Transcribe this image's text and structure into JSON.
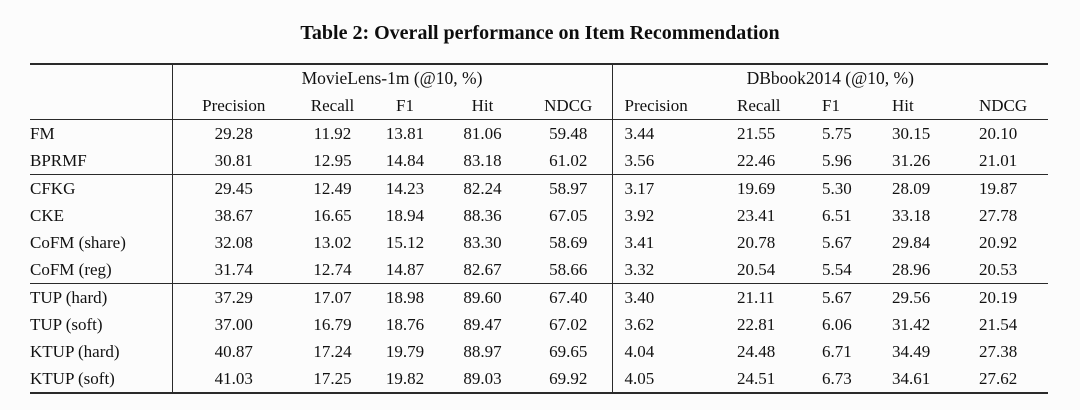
{
  "title": "Table 2: Overall performance on Item Recommendation",
  "table": {
    "groups": [
      {
        "label": "MovieLens-1m (@10, %)"
      },
      {
        "label": "DBbook2014 (@10, %)"
      }
    ],
    "metrics": [
      "Precision",
      "Recall",
      "F1",
      "Hit",
      "NDCG"
    ],
    "row_groups": [
      {
        "rows": [
          {
            "label": "FM",
            "ml": [
              "29.28",
              "11.92",
              "13.81",
              "81.06",
              "59.48"
            ],
            "db": [
              "3.44",
              "21.55",
              "5.75",
              "30.15",
              "20.10"
            ],
            "ml_bold": [],
            "db_bold": []
          },
          {
            "label": "BPRMF",
            "ml": [
              "30.81",
              "12.95",
              "14.84",
              "83.18",
              "61.02"
            ],
            "db": [
              "3.56",
              "22.46",
              "5.96",
              "31.26",
              "21.01"
            ],
            "ml_bold": [],
            "db_bold": []
          }
        ]
      },
      {
        "rows": [
          {
            "label": "CFKG",
            "ml": [
              "29.45",
              "12.49",
              "14.23",
              "82.24",
              "58.97"
            ],
            "db": [
              "3.17",
              "19.69",
              "5.30",
              "28.09",
              "19.87"
            ],
            "ml_bold": [],
            "db_bold": []
          },
          {
            "label": "CKE",
            "ml": [
              "38.67",
              "16.65",
              "18.94",
              "88.36",
              "67.05"
            ],
            "db": [
              "3.92",
              "23.41",
              "6.51",
              "33.18",
              "27.78"
            ],
            "ml_bold": [],
            "db_bold": [
              4
            ]
          },
          {
            "label": "CoFM (share)",
            "ml": [
              "32.08",
              "13.02",
              "15.12",
              "83.30",
              "58.69"
            ],
            "db": [
              "3.41",
              "20.78",
              "5.67",
              "29.84",
              "20.92"
            ],
            "ml_bold": [],
            "db_bold": []
          },
          {
            "label": "CoFM (reg)",
            "ml": [
              "31.74",
              "12.74",
              "14.87",
              "82.67",
              "58.66"
            ],
            "db": [
              "3.32",
              "20.54",
              "5.54",
              "28.96",
              "20.53"
            ],
            "ml_bold": [],
            "db_bold": []
          }
        ]
      },
      {
        "rows": [
          {
            "label": "TUP (hard)",
            "ml": [
              "37.29",
              "17.07",
              "18.98",
              "89.60",
              "67.40"
            ],
            "db": [
              "3.40",
              "21.11",
              "5.67",
              "29.56",
              "20.19"
            ],
            "ml_bold": [
              3
            ],
            "db_bold": []
          },
          {
            "label": "TUP (soft)",
            "ml": [
              "37.00",
              "16.79",
              "18.76",
              "89.47",
              "67.02"
            ],
            "db": [
              "3.62",
              "22.81",
              "6.06",
              "31.42",
              "21.54"
            ],
            "ml_bold": [],
            "db_bold": []
          },
          {
            "label": "KTUP (hard)",
            "ml": [
              "40.87",
              "17.24",
              "19.79",
              "88.97",
              "69.65"
            ],
            "db": [
              "4.04",
              "24.48",
              "6.71",
              "34.49",
              "27.38"
            ],
            "ml_bold": [],
            "db_bold": []
          },
          {
            "label": "KTUP (soft)",
            "ml": [
              "41.03",
              "17.25",
              "19.82",
              "89.03",
              "69.92"
            ],
            "db": [
              "4.05",
              "24.51",
              "6.73",
              "34.61",
              "27.62"
            ],
            "ml_bold": [
              0,
              1,
              2,
              4
            ],
            "db_bold": [
              0,
              1,
              2,
              3
            ]
          }
        ]
      }
    ]
  }
}
